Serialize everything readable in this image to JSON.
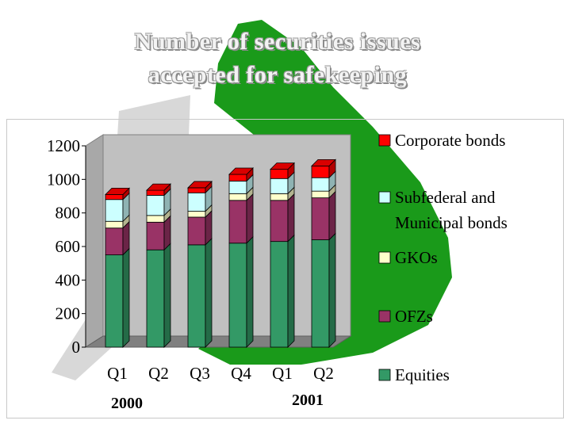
{
  "title_line1": "Number of securities issues",
  "title_line2": "accepted for safekeeping",
  "year_labels": [
    "2000",
    "2001"
  ],
  "colors": {
    "Equities": "#339966",
    "OFZs": "#993366",
    "GKOs": "#ffffcc",
    "Subfederal and Municipal bonds": "#ccffff",
    "Corporate bonds": "#ff0000",
    "background_shape": "#1a9a1a",
    "plot_wall": "#c0c0c0"
  },
  "chart_data": {
    "type": "bar",
    "stacked": true,
    "three_d": true,
    "title": "Number of securities issues accepted for safekeeping",
    "xlabel": "",
    "ylabel": "",
    "categories": [
      "Q1",
      "Q2",
      "Q3",
      "Q4",
      "Q1",
      "Q2"
    ],
    "category_years": [
      "2000",
      "2000",
      "2000",
      "2000",
      "2001",
      "2001"
    ],
    "ylim": [
      0,
      1200
    ],
    "yticks": [
      0,
      200,
      400,
      600,
      800,
      1000,
      1200
    ],
    "grid": false,
    "legend_position": "right",
    "legend": [
      {
        "name": "Corporate bonds",
        "lines": [
          "Corporate bonds"
        ]
      },
      {
        "name": "Subfederal and Municipal bonds",
        "lines": [
          "Subfederal and",
          "Municipal bonds"
        ]
      },
      {
        "name": "GKOs",
        "lines": [
          "GKOs"
        ]
      },
      {
        "name": "OFZs",
        "lines": [
          "OFZs"
        ]
      },
      {
        "name": "Equities",
        "lines": [
          "Equities"
        ]
      }
    ],
    "series": [
      {
        "name": "Equities",
        "values": [
          550,
          580,
          610,
          620,
          630,
          640
        ]
      },
      {
        "name": "OFZs",
        "values": [
          160,
          165,
          165,
          255,
          245,
          250
        ]
      },
      {
        "name": "GKOs",
        "values": [
          40,
          40,
          35,
          40,
          40,
          40
        ]
      },
      {
        "name": "Subfederal and Municipal bonds",
        "values": [
          130,
          120,
          110,
          75,
          90,
          80
        ]
      },
      {
        "name": "Corporate bonds",
        "values": [
          30,
          30,
          30,
          40,
          55,
          70
        ]
      }
    ]
  }
}
